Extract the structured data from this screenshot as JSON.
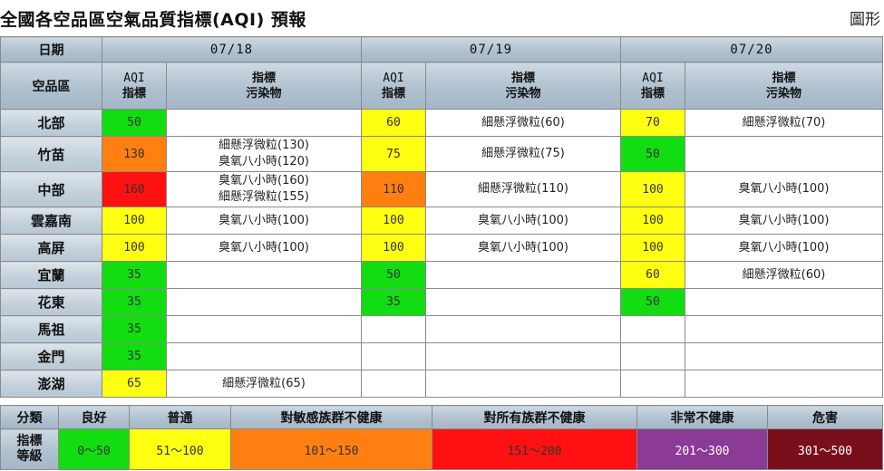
{
  "title": "全國各空品區空氣品質指標(AQI) 預報",
  "view_toggle": "圖形",
  "header": {
    "date_label": "日期",
    "region_label": "空品區",
    "aqi_line1": "AQI",
    "aqi_line2": "指標",
    "pol_line1": "指標",
    "pol_line2": "污染物",
    "dates": [
      "07/18",
      "07/19",
      "07/20"
    ]
  },
  "rows": [
    {
      "region": "北部",
      "d": [
        {
          "aqi": "50",
          "color": "#11dd11",
          "pol": [
            ""
          ]
        },
        {
          "aqi": "60",
          "color": "#ffff11",
          "pol": [
            "細懸浮微粒(60)"
          ]
        },
        {
          "aqi": "70",
          "color": "#ffff11",
          "pol": [
            "細懸浮微粒(70)"
          ]
        }
      ]
    },
    {
      "region": "竹苗",
      "d": [
        {
          "aqi": "130",
          "color": "#ff7f11",
          "pol": [
            "細懸浮微粒(130)",
            "臭氧八小時(120)"
          ]
        },
        {
          "aqi": "75",
          "color": "#ffff11",
          "pol": [
            "細懸浮微粒(75)"
          ]
        },
        {
          "aqi": "50",
          "color": "#11dd11",
          "pol": [
            ""
          ]
        }
      ]
    },
    {
      "region": "中部",
      "d": [
        {
          "aqi": "160",
          "color": "#ff1111",
          "pol": [
            "臭氧八小時(160)",
            "細懸浮微粒(155)"
          ]
        },
        {
          "aqi": "110",
          "color": "#ff7f11",
          "pol": [
            "細懸浮微粒(110)"
          ]
        },
        {
          "aqi": "100",
          "color": "#ffff11",
          "pol": [
            "臭氧八小時(100)"
          ]
        }
      ]
    },
    {
      "region": "雲嘉南",
      "d": [
        {
          "aqi": "100",
          "color": "#ffff11",
          "pol": [
            "臭氧八小時(100)"
          ]
        },
        {
          "aqi": "100",
          "color": "#ffff11",
          "pol": [
            "臭氧八小時(100)"
          ]
        },
        {
          "aqi": "100",
          "color": "#ffff11",
          "pol": [
            "臭氧八小時(100)"
          ]
        }
      ]
    },
    {
      "region": "高屏",
      "d": [
        {
          "aqi": "100",
          "color": "#ffff11",
          "pol": [
            "臭氧八小時(100)"
          ]
        },
        {
          "aqi": "100",
          "color": "#ffff11",
          "pol": [
            "臭氧八小時(100)"
          ]
        },
        {
          "aqi": "100",
          "color": "#ffff11",
          "pol": [
            "臭氧八小時(100)"
          ]
        }
      ]
    },
    {
      "region": "宜蘭",
      "d": [
        {
          "aqi": "35",
          "color": "#11dd11",
          "pol": [
            ""
          ]
        },
        {
          "aqi": "50",
          "color": "#11dd11",
          "pol": [
            ""
          ]
        },
        {
          "aqi": "60",
          "color": "#ffff11",
          "pol": [
            "細懸浮微粒(60)"
          ]
        }
      ]
    },
    {
      "region": "花東",
      "d": [
        {
          "aqi": "35",
          "color": "#11dd11",
          "pol": [
            ""
          ]
        },
        {
          "aqi": "35",
          "color": "#11dd11",
          "pol": [
            ""
          ]
        },
        {
          "aqi": "50",
          "color": "#11dd11",
          "pol": [
            ""
          ]
        }
      ]
    },
    {
      "region": "馬祖",
      "d": [
        {
          "aqi": "35",
          "color": "#11dd11",
          "pol": [
            ""
          ]
        },
        {
          "aqi": "",
          "color": "#ffffff",
          "pol": [
            ""
          ]
        },
        {
          "aqi": "",
          "color": "#ffffff",
          "pol": [
            ""
          ]
        }
      ]
    },
    {
      "region": "金門",
      "d": [
        {
          "aqi": "35",
          "color": "#11dd11",
          "pol": [
            ""
          ]
        },
        {
          "aqi": "",
          "color": "#ffffff",
          "pol": [
            ""
          ]
        },
        {
          "aqi": "",
          "color": "#ffffff",
          "pol": [
            ""
          ]
        }
      ]
    },
    {
      "region": "澎湖",
      "d": [
        {
          "aqi": "65",
          "color": "#ffff11",
          "pol": [
            "細懸浮微粒(65)"
          ]
        },
        {
          "aqi": "",
          "color": "#ffffff",
          "pol": [
            ""
          ]
        },
        {
          "aqi": "",
          "color": "#ffffff",
          "pol": [
            ""
          ]
        }
      ]
    }
  ],
  "legend": {
    "category_label": "分類",
    "level_label_1": "指標",
    "level_label_2": "等級",
    "items": [
      {
        "name": "良好",
        "range": "0～50",
        "bg": "#11dd11",
        "fg": "#333333"
      },
      {
        "name": "普通",
        "range": "51～100",
        "bg": "#ffff11",
        "fg": "#333333"
      },
      {
        "name": "對敏感族群不健康",
        "range": "101～150",
        "bg": "#ff7f11",
        "fg": "#333333"
      },
      {
        "name": "對所有族群不健康",
        "range": "151～200",
        "bg": "#ff1111",
        "fg": "#333333"
      },
      {
        "name": "非常不健康",
        "range": "201～300",
        "bg": "#8b3a96",
        "fg": "#ffffff"
      },
      {
        "name": "危害",
        "range": "301～500",
        "bg": "#7a0f1c",
        "fg": "#ffffff"
      }
    ]
  }
}
